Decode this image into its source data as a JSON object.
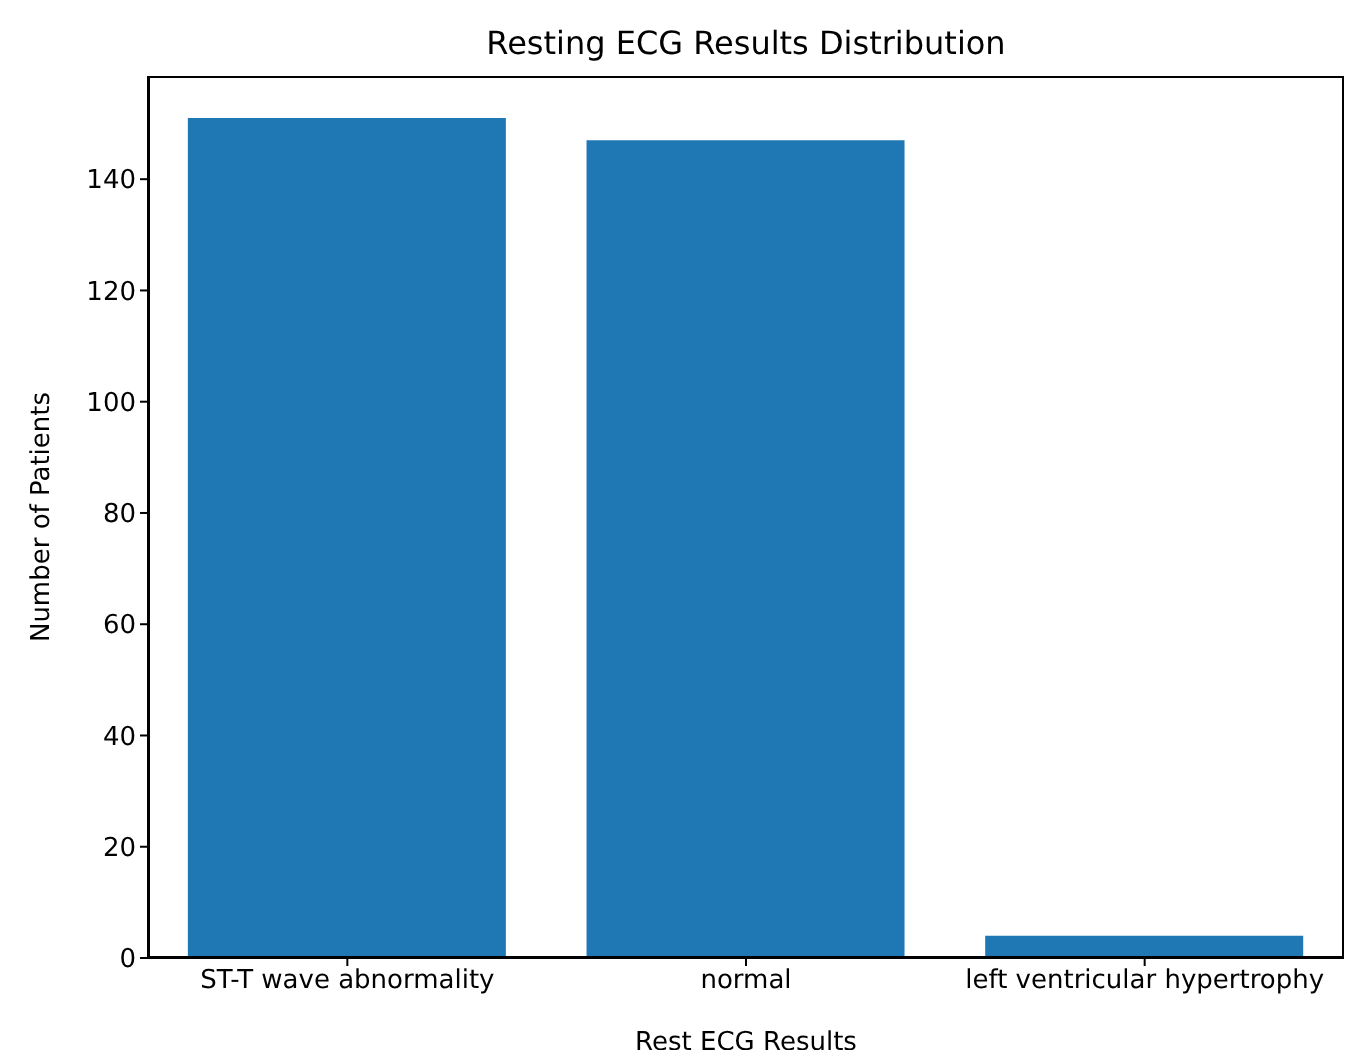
{
  "chart_data": {
    "type": "bar",
    "title": "Resting ECG Results Distribution",
    "xlabel": "Rest ECG Results",
    "ylabel": "Number of Patients",
    "categories": [
      "ST-T wave abnormality",
      "normal",
      "left ventricular hypertrophy"
    ],
    "values": [
      151,
      147,
      4
    ],
    "color": "#1f77b4",
    "ylim": [
      0,
      158.55
    ],
    "yticks": [
      0,
      20,
      40,
      60,
      80,
      100,
      120,
      140
    ],
    "grid": false,
    "legend": false
  }
}
